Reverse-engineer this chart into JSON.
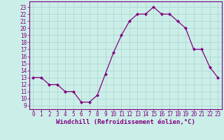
{
  "x": [
    0,
    1,
    2,
    3,
    4,
    5,
    6,
    7,
    8,
    9,
    10,
    11,
    12,
    13,
    14,
    15,
    16,
    17,
    18,
    19,
    20,
    21,
    22,
    23
  ],
  "y": [
    13,
    13,
    12,
    12,
    11,
    11,
    9.5,
    9.5,
    10.5,
    13.5,
    16.5,
    19,
    21,
    22,
    22,
    23,
    22,
    22,
    21,
    20,
    17,
    17,
    14.5,
    13
  ],
  "line_color": "#800080",
  "marker": "D",
  "marker_size": 2.0,
  "bg_color": "#cceee8",
  "grid_color": "#aad4ce",
  "xlabel": "Windchill (Refroidissement éolien,°C)",
  "xlabel_fontsize": 6.5,
  "ytick_labels": [
    "9",
    "10",
    "11",
    "12",
    "13",
    "14",
    "15",
    "16",
    "17",
    "18",
    "19",
    "20",
    "21",
    "22",
    "23"
  ],
  "ylim": [
    8.5,
    23.8
  ],
  "xlim": [
    -0.5,
    23.5
  ],
  "xtick_labels": [
    "0",
    "1",
    "2",
    "3",
    "4",
    "5",
    "6",
    "7",
    "8",
    "9",
    "10",
    "11",
    "12",
    "13",
    "14",
    "15",
    "16",
    "17",
    "18",
    "19",
    "20",
    "21",
    "22",
    "23"
  ],
  "tick_fontsize": 5.5,
  "tick_color": "#800080",
  "spine_color": "#800080",
  "label_color": "#800080"
}
